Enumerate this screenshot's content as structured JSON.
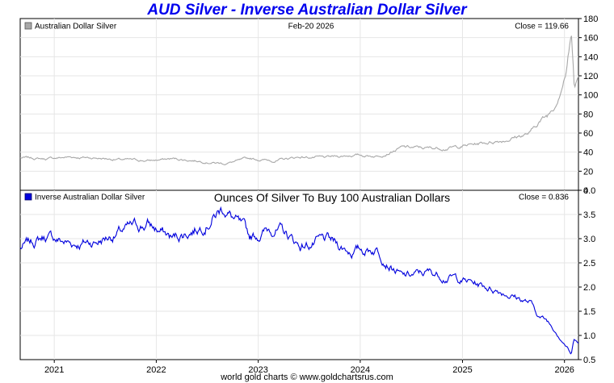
{
  "title": "AUD Silver - Inverse Australian Dollar Silver",
  "footer": "world gold charts © www.goldchartsrus.com",
  "colors": {
    "title": "#0000ee",
    "top_series": "#a8a8a8",
    "bottom_series": "#0000dd",
    "grid": "#e6e6e6"
  },
  "chart_data": [
    {
      "type": "line",
      "panel": "top",
      "legend": "Australian Dollar Silver",
      "date_label": "Feb-20  2026",
      "close_label": "Close = 119.66",
      "ylim": [
        0,
        180
      ],
      "yticks": [
        0,
        20,
        40,
        60,
        80,
        100,
        120,
        140,
        160,
        180
      ],
      "xticks": [
        "2021",
        "2022",
        "2023",
        "2024",
        "2025",
        "2026"
      ],
      "grid": true,
      "series": [
        {
          "x": [
            "2020-09",
            "2020-12",
            "2021-03",
            "2021-06",
            "2021-09",
            "2021-12",
            "2022-03",
            "2022-06",
            "2022-09",
            "2022-12",
            "2023-03",
            "2023-06",
            "2023-09",
            "2023-12",
            "2024-03",
            "2024-06",
            "2024-09",
            "2024-12",
            "2025-03",
            "2025-06",
            "2025-09",
            "2025-10",
            "2025-11",
            "2025-12",
            "2026-01-10",
            "2026-01-25",
            "2026-02-05",
            "2026-02-20"
          ],
          "values": [
            34,
            33,
            35,
            34,
            32,
            31,
            33,
            31,
            28,
            33,
            31,
            35,
            34,
            37,
            36,
            45,
            44,
            45,
            49,
            53,
            60,
            72,
            78,
            92,
            130,
            165,
            108,
            119.66
          ]
        }
      ]
    },
    {
      "type": "line",
      "panel": "bottom",
      "legend": "Inverse Australian Dollar Silver",
      "title": "Ounces Of Silver To Buy 100 Australian Dollars",
      "close_label": "Close = 0.836",
      "ylim": [
        0.5,
        4.0
      ],
      "yticks": [
        0.5,
        1.0,
        1.5,
        2.0,
        2.5,
        3.0,
        3.5,
        4.0
      ],
      "xticks": [
        "2021",
        "2022",
        "2023",
        "2024",
        "2025",
        "2026"
      ],
      "grid": true,
      "series": [
        {
          "x": [
            "2020-09",
            "2020-12",
            "2021-03",
            "2021-06",
            "2021-09",
            "2021-12",
            "2022-03",
            "2022-06",
            "2022-09",
            "2022-12",
            "2023-03",
            "2023-06",
            "2023-09",
            "2023-12",
            "2024-03",
            "2024-06",
            "2024-09",
            "2024-12",
            "2025-03",
            "2025-06",
            "2025-09",
            "2025-10",
            "2025-11",
            "2025-12",
            "2026-01-10",
            "2026-01-25",
            "2026-02-05",
            "2026-02-20"
          ],
          "values": [
            2.8,
            3.05,
            2.9,
            2.95,
            3.15,
            3.3,
            3.0,
            3.25,
            3.65,
            3.0,
            3.25,
            2.85,
            2.95,
            2.75,
            2.8,
            2.2,
            2.3,
            2.2,
            2.05,
            1.9,
            1.67,
            1.4,
            1.3,
            1.1,
            0.77,
            0.6,
            0.93,
            0.836
          ]
        }
      ]
    }
  ]
}
